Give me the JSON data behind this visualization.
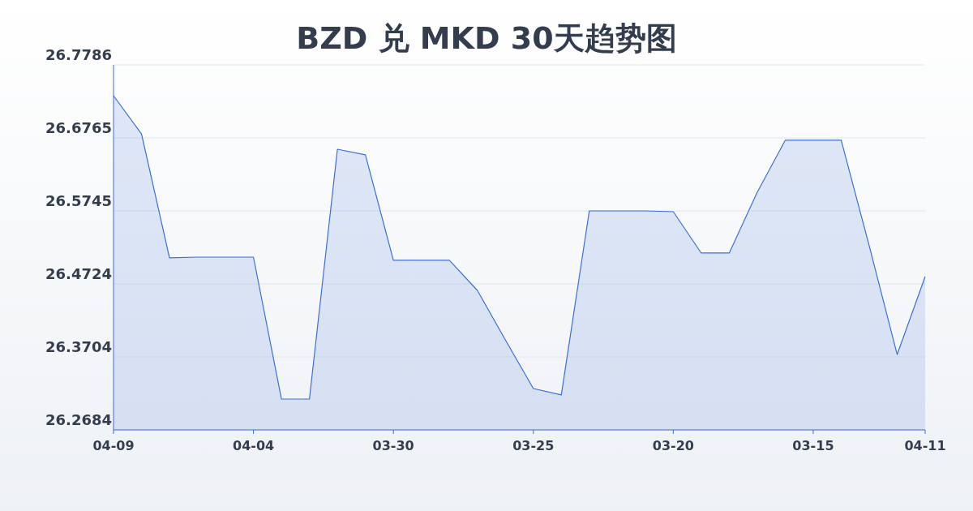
{
  "chart_data": {
    "type": "area",
    "title": "BZD 兑 MKD 30天趋势图",
    "categories": [
      "04-09",
      null,
      null,
      null,
      null,
      "04-04",
      null,
      null,
      null,
      null,
      "03-30",
      null,
      null,
      null,
      null,
      "03-25",
      null,
      null,
      null,
      null,
      "03-20",
      null,
      null,
      null,
      null,
      "03-15",
      null,
      null,
      null,
      "04-11"
    ],
    "series": [
      {
        "color": "#3a6fd8",
        "values": [
          26.7355,
          26.6822,
          26.5088,
          26.5099,
          26.5099,
          26.5099,
          26.3115,
          26.3115,
          26.6607,
          26.6528,
          26.5054,
          26.5054,
          26.5054,
          26.4634,
          26.3943,
          26.3262,
          26.3172,
          26.5745,
          26.5745,
          26.5745,
          26.5734,
          26.5156,
          26.5156,
          26.6006,
          26.6732,
          26.6732,
          26.6732,
          26.5258,
          26.3738,
          26.4827
        ]
      }
    ],
    "ylim": [
      26.2684,
      26.7786
    ],
    "yticks": [
      26.2684,
      26.3704,
      26.4724,
      26.5745,
      26.6765,
      26.7786
    ],
    "grid": "y",
    "marker": "none",
    "line_style": "solid"
  }
}
